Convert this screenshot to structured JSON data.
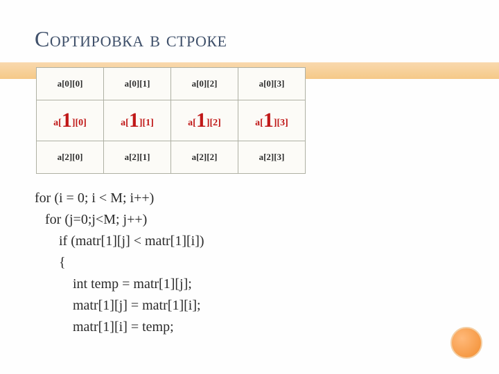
{
  "title": "Сортировка в строке",
  "colors": {
    "title_color": "#3f506a",
    "band_top": "#f9d9ae",
    "band_bottom": "#f5c988",
    "table_border": "#aeb0a3",
    "cell_bg": "#fcfbf7",
    "highlight_text": "#c01818",
    "dot_inner": "#f28d2f",
    "dot_outer": "#ffb97a",
    "dot_border": "#f3cfa5"
  },
  "table": {
    "rows": [
      [
        "a[0][0]",
        "a[0][1]",
        "a[0][2]",
        "a[0][3]"
      ],
      [
        "a[1][0]",
        "a[1][1]",
        "a[1][2]",
        "a[1][3]"
      ],
      [
        "a[2][0]",
        "a[2][1]",
        "a[2][2]",
        "a[2][3]"
      ]
    ],
    "highlight_row_index": 1,
    "big_char": "1"
  },
  "code_lines": [
    "for (i = 0; i < M; i++)",
    "   for (j=0;j<M; j++)",
    "       if (matr[1][j] < matr[1][i])",
    "       {",
    "           int temp = matr[1][j];",
    "           matr[1][j] = matr[1][i];",
    "           matr[1][i] = temp;"
  ]
}
